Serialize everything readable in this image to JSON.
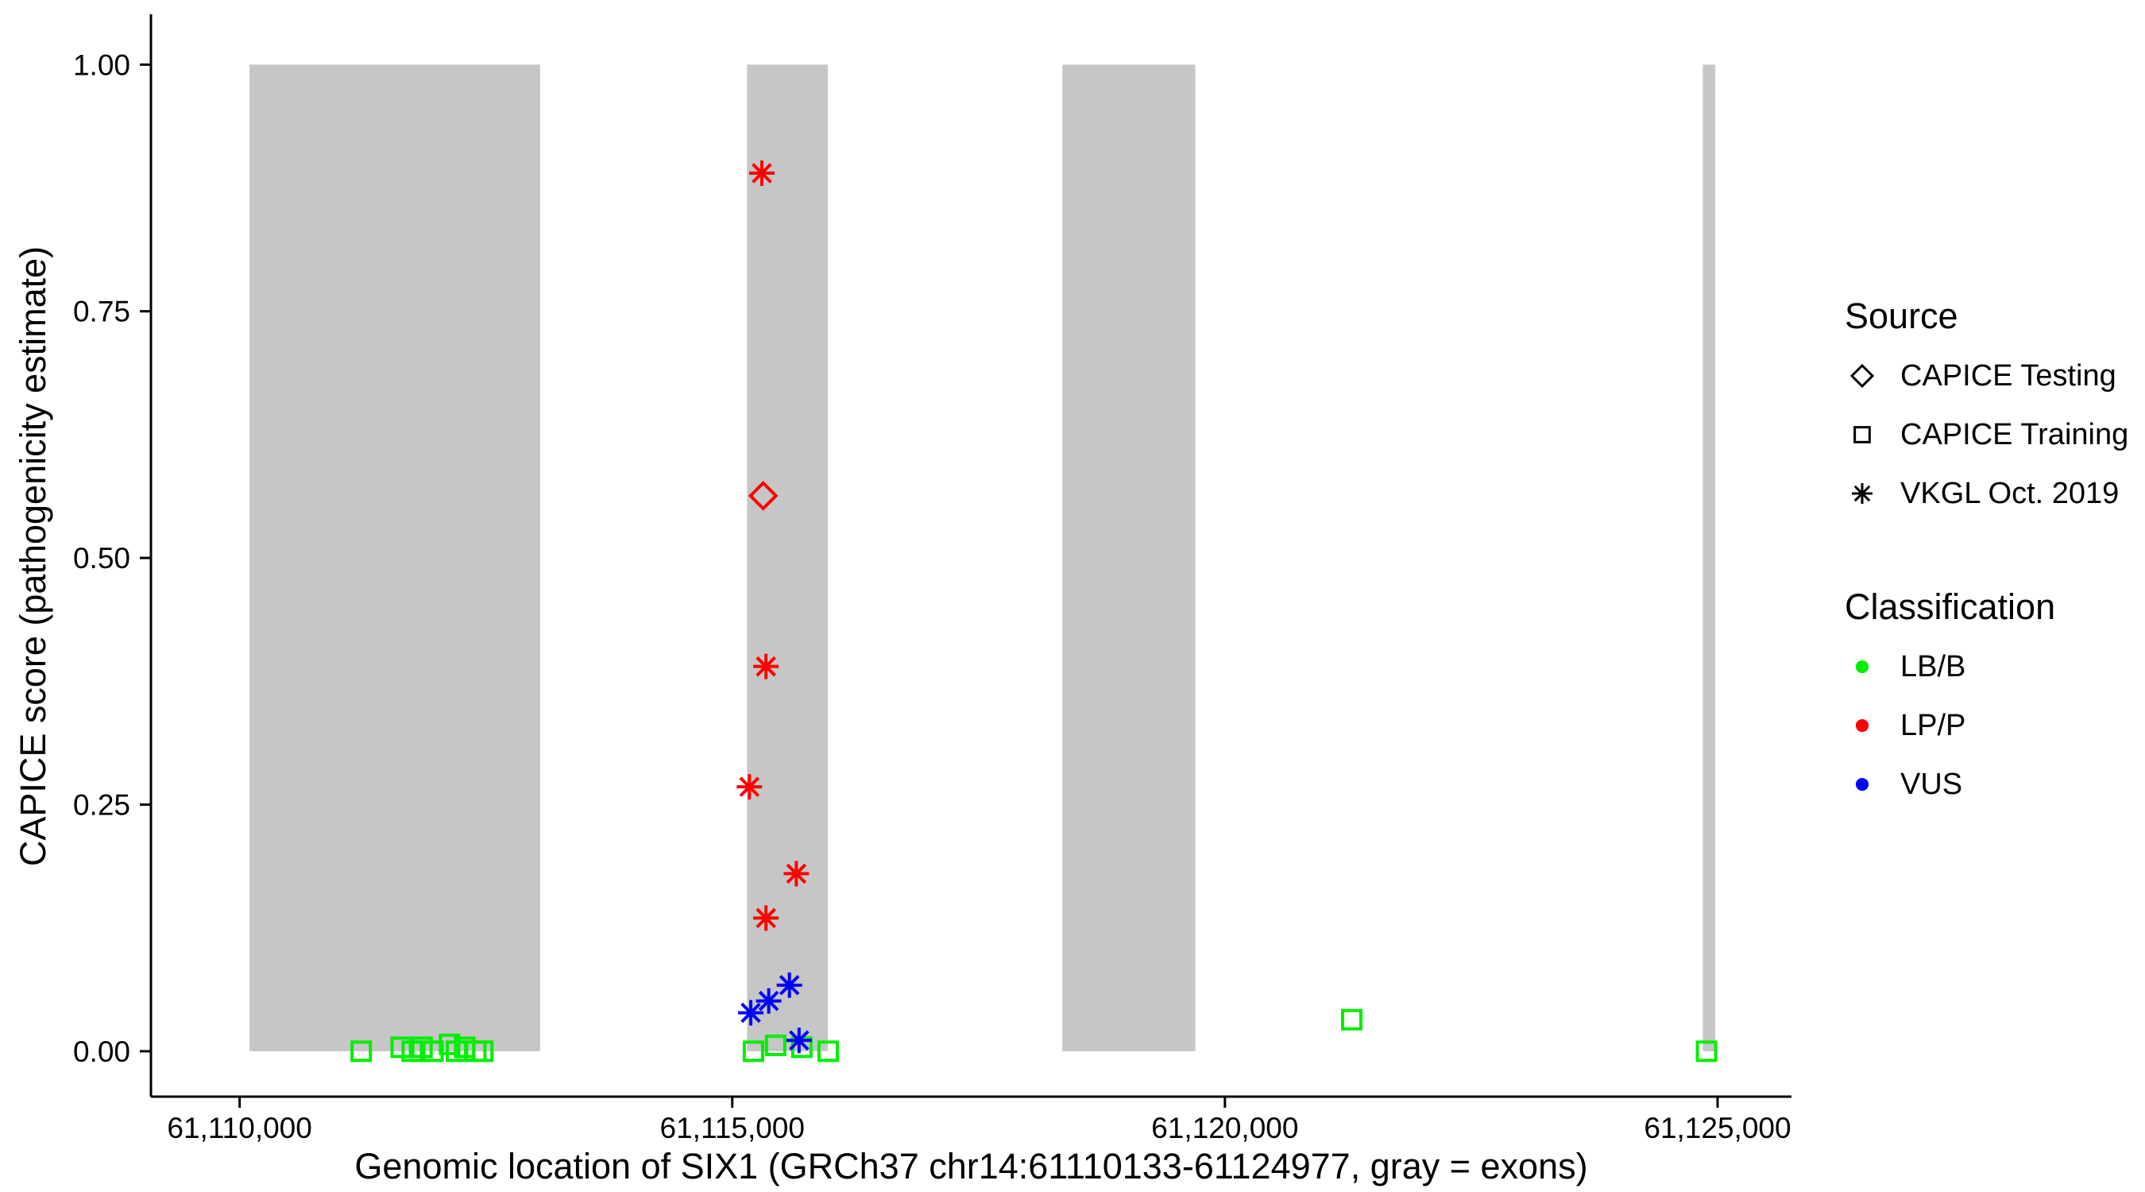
{
  "figure": {
    "background": "#ffffff"
  },
  "legend": {
    "source_title": "Source",
    "source_items": [
      {
        "label": "CAPICE Testing",
        "shape": "diamond"
      },
      {
        "label": "CAPICE Training",
        "shape": "square"
      },
      {
        "label": "VKGL Oct. 2019",
        "shape": "asterisk"
      }
    ],
    "classification_title": "Classification",
    "classification_items": [
      {
        "label": "LB/B",
        "color": "#00EE00"
      },
      {
        "label": "LP/P",
        "color": "#FF0000"
      },
      {
        "label": "VUS",
        "color": "#0000FF"
      }
    ]
  },
  "chart_data": {
    "type": "scatter",
    "title": "",
    "xlabel": "Genomic location of SIX1 (GRCh37 chr14:61110133-61124977, gray = exons)",
    "ylabel": "CAPICE score (pathogenicity estimate)",
    "xlim": [
      61109100,
      61125750
    ],
    "ylim": [
      -0.046,
      1.051
    ],
    "grid": false,
    "legend_position": "right",
    "x_ticks": [
      {
        "value": 61110000,
        "label": "61,110,000"
      },
      {
        "value": 61115000,
        "label": "61,115,000"
      },
      {
        "value": 61120000,
        "label": "61,120,000"
      },
      {
        "value": 61125000,
        "label": "61,125,000"
      }
    ],
    "y_ticks": [
      {
        "value": 0.0,
        "label": "0.00"
      },
      {
        "value": 0.25,
        "label": "0.25"
      },
      {
        "value": 0.5,
        "label": "0.50"
      },
      {
        "value": 0.75,
        "label": "0.75"
      },
      {
        "value": 1.0,
        "label": "1.00"
      }
    ],
    "exon_color": "#C6C6C6",
    "exons": [
      {
        "start": 61110100,
        "end": 61113050
      },
      {
        "start": 61115150,
        "end": 61115970
      },
      {
        "start": 61118350,
        "end": 61119700
      },
      {
        "start": 61124850,
        "end": 61124977
      }
    ],
    "colors": {
      "LB/B": "#00EE00",
      "LP/P": "#FF0000",
      "VUS": "#0000FF"
    },
    "shapes": {
      "CAPICE Testing": "diamond",
      "CAPICE Training": "square",
      "VKGL Oct. 2019": "asterisk"
    },
    "points": [
      {
        "x": 61111234,
        "y": 0.0,
        "source": "CAPICE Training",
        "classification": "LB/B"
      },
      {
        "x": 61111640,
        "y": 0.004,
        "source": "CAPICE Training",
        "classification": "LB/B"
      },
      {
        "x": 61111752,
        "y": 0.0,
        "source": "CAPICE Training",
        "classification": "LB/B"
      },
      {
        "x": 61111851,
        "y": 0.004,
        "source": "CAPICE Training",
        "classification": "LB/B"
      },
      {
        "x": 61111963,
        "y": 0.0,
        "source": "CAPICE Training",
        "classification": "LB/B"
      },
      {
        "x": 61112131,
        "y": 0.007,
        "source": "CAPICE Training",
        "classification": "LB/B"
      },
      {
        "x": 61112201,
        "y": 0.0,
        "source": "CAPICE Training",
        "classification": "LB/B"
      },
      {
        "x": 61112285,
        "y": 0.004,
        "source": "CAPICE Training",
        "classification": "LB/B"
      },
      {
        "x": 61112397,
        "y": 0.0,
        "source": "CAPICE Training",
        "classification": "LB/B"
      },
      {
        "x": 61112468,
        "y": 0.0,
        "source": "CAPICE Training",
        "classification": "LB/B"
      },
      {
        "x": 61115215,
        "y": 0.0,
        "source": "CAPICE Training",
        "classification": "LB/B"
      },
      {
        "x": 61115440,
        "y": 0.006,
        "source": "CAPICE Training",
        "classification": "LB/B"
      },
      {
        "x": 61115706,
        "y": 0.004,
        "source": "CAPICE Training",
        "classification": "LB/B"
      },
      {
        "x": 61115973,
        "y": 0.0,
        "source": "CAPICE Training",
        "classification": "LB/B"
      },
      {
        "x": 61121287,
        "y": 0.032,
        "source": "CAPICE Training",
        "classification": "LB/B"
      },
      {
        "x": 61124888,
        "y": 0.0,
        "source": "CAPICE Training",
        "classification": "LB/B"
      },
      {
        "x": 61115300,
        "y": 0.89,
        "source": "VKGL Oct. 2019",
        "classification": "LP/P"
      },
      {
        "x": 61115342,
        "y": 0.39,
        "source": "VKGL Oct. 2019",
        "classification": "LP/P"
      },
      {
        "x": 61115174,
        "y": 0.268,
        "source": "VKGL Oct. 2019",
        "classification": "LP/P"
      },
      {
        "x": 61115650,
        "y": 0.18,
        "source": "VKGL Oct. 2019",
        "classification": "LP/P"
      },
      {
        "x": 61115342,
        "y": 0.135,
        "source": "VKGL Oct. 2019",
        "classification": "LP/P"
      },
      {
        "x": 61115314,
        "y": 0.563,
        "source": "CAPICE Testing",
        "classification": "LP/P"
      },
      {
        "x": 61115580,
        "y": 0.067,
        "source": "VKGL Oct. 2019",
        "classification": "VUS"
      },
      {
        "x": 61115370,
        "y": 0.051,
        "source": "VKGL Oct. 2019",
        "classification": "VUS"
      },
      {
        "x": 61115188,
        "y": 0.039,
        "source": "VKGL Oct. 2019",
        "classification": "VUS"
      },
      {
        "x": 61115678,
        "y": 0.011,
        "source": "VKGL Oct. 2019",
        "classification": "VUS"
      }
    ]
  }
}
